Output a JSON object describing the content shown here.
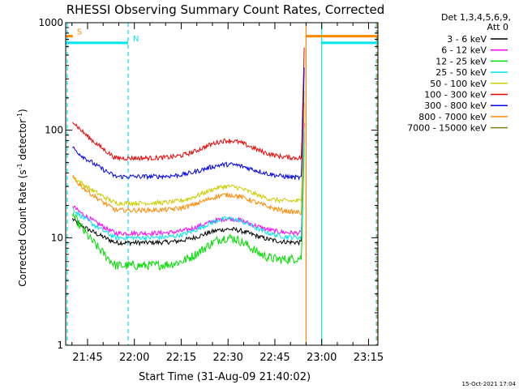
{
  "chart_data": {
    "type": "line",
    "title": "RHESSI Observing Summary Count Rates, Corrected",
    "xlabel": "Start Time (31-Aug-09 21:40:02)",
    "ylabel_parts": {
      "main": "Corrected Count Rate (s",
      "sup1": "-1",
      "mid": " detector",
      "sup2": "-1",
      "end": ")"
    },
    "yscale": "log",
    "ylim": [
      1,
      1000
    ],
    "y_ticks": [
      "1",
      "10",
      "100",
      "1000"
    ],
    "x_range_minutes": [
      -2,
      98
    ],
    "x_ticks": [
      {
        "label": "21:45",
        "t": 5
      },
      {
        "label": "22:00",
        "t": 20
      },
      {
        "label": "22:15",
        "t": 35
      },
      {
        "label": "22:30",
        "t": 50
      },
      {
        "label": "22:45",
        "t": 65
      },
      {
        "label": "23:00",
        "t": 80
      },
      {
        "label": "23:15",
        "t": 95
      }
    ],
    "legend_header": [
      "Det 1,3,4,5,6,9,",
      "Att 0"
    ],
    "legend_placement": "right",
    "series": [
      {
        "name": "3 - 6 keV",
        "color": "#000000",
        "start": 15,
        "valley": 9,
        "hump": 12,
        "end": 9
      },
      {
        "name": "6 - 12 keV",
        "color": "#ff00ff",
        "start": 20,
        "valley": 11,
        "hump": 15,
        "end": 11
      },
      {
        "name": "12 - 25 keV",
        "color": "#00dd00",
        "start": 17,
        "valley": 5.5,
        "hump": 10,
        "end": 6.5
      },
      {
        "name": "25 - 50 keV",
        "color": "#00e5ee",
        "start": 19,
        "valley": 10,
        "hump": 15,
        "end": 10
      },
      {
        "name": "50 - 100 keV",
        "color": "#cccc00",
        "start": 38,
        "valley": 21,
        "hump": 30,
        "end": 22
      },
      {
        "name": "100 - 300 keV",
        "color": "#ee0000",
        "start": 125,
        "valley": 55,
        "hump": 80,
        "end": 55
      },
      {
        "name": "300 - 800 keV",
        "color": "#0000ee",
        "start": 70,
        "valley": 37,
        "hump": 48,
        "end": 36
      },
      {
        "name": "800 - 7000 keV",
        "color": "#ff8800",
        "start": 37,
        "valley": 18,
        "hump": 25,
        "end": 17
      },
      {
        "name": "7000 - 15000 keV",
        "color": "#808000",
        "start": 0,
        "valley": 0,
        "hump": 0,
        "end": 0
      }
    ],
    "flag_markers": [
      {
        "label": "S",
        "color": "#ff8800",
        "t": 0,
        "level": 750,
        "segments": [
          [
            -2,
            0.3
          ],
          [
            75,
            98
          ]
        ]
      },
      {
        "label": "N",
        "color": "#00e5ee",
        "t": 18,
        "level": 650,
        "segments": [
          [
            -2,
            18
          ],
          [
            80,
            98
          ]
        ]
      }
    ],
    "vertical_lines": [
      {
        "t": -1.5,
        "color": "#00e5ee",
        "style": "dashed"
      },
      {
        "t": 18,
        "color": "#00e5ee",
        "style": "dashed"
      },
      {
        "t": 75,
        "color": "#ff8800",
        "style": "solid"
      },
      {
        "t": 80,
        "color": "#00e5ee",
        "style": "solid"
      },
      {
        "t": 97.5,
        "color": "#00e5ee",
        "style": "dashed"
      },
      {
        "t": 97.8,
        "color": "#ff8800",
        "style": "dashed"
      }
    ],
    "timestamp": "15-Oct-2021 17:04"
  }
}
